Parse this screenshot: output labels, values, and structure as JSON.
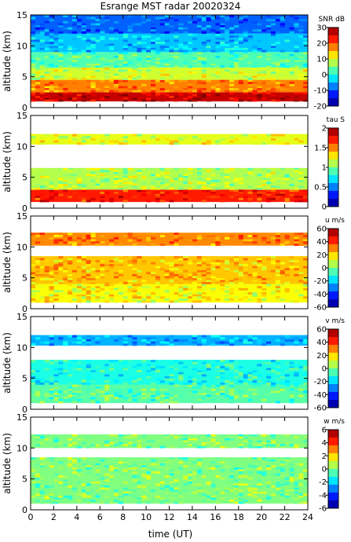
{
  "chart_data": {
    "type": "heatmap",
    "title": "Esrange MST radar 20020324",
    "xlabel": "time (UT)",
    "xlim": [
      0,
      24
    ],
    "x_ticks": [
      "0",
      "2",
      "4",
      "6",
      "8",
      "10",
      "12",
      "14",
      "16",
      "18",
      "20",
      "22",
      "24"
    ],
    "panels": [
      {
        "ylabel": "altitude (km)",
        "ylim": [
          0,
          15
        ],
        "y_ticks": [
          "0",
          "5",
          "10",
          "15"
        ],
        "colorbar_label": "SNR dB",
        "clim": [
          -20,
          30
        ],
        "colorbar_ticks": [
          "30",
          "20",
          "10",
          "0",
          "-10",
          "-20"
        ],
        "layers": [
          {
            "alt_min": 1,
            "alt_max": 2.5,
            "level": 0.93
          },
          {
            "alt_min": 2.5,
            "alt_max": 4.5,
            "level": 0.75
          },
          {
            "alt_min": 4.5,
            "alt_max": 6.5,
            "level": 0.58
          },
          {
            "alt_min": 6.5,
            "alt_max": 9,
            "level": 0.45
          },
          {
            "alt_min": 9,
            "alt_max": 12,
            "level": 0.32
          },
          {
            "alt_min": 12,
            "alt_max": 15,
            "level": 0.22
          }
        ]
      },
      {
        "ylabel": "altitude (km)",
        "ylim": [
          0,
          15
        ],
        "y_ticks": [
          "0",
          "5",
          "10",
          "15"
        ],
        "colorbar_label": "tau S",
        "clim": [
          0,
          2
        ],
        "colorbar_ticks": [
          "2",
          "1.5",
          "1",
          "0.5",
          "0"
        ],
        "layers": [
          {
            "alt_min": 1,
            "alt_max": 3,
            "level": 0.85
          },
          {
            "alt_min": 3,
            "alt_max": 6.5,
            "level": 0.55
          },
          {
            "alt_min": 10.3,
            "alt_max": 12,
            "level": 0.6
          }
        ]
      },
      {
        "ylabel": "altitude (km)",
        "ylim": [
          0,
          15
        ],
        "y_ticks": [
          "0",
          "5",
          "10",
          "15"
        ],
        "colorbar_label": "u m/s",
        "clim": [
          -60,
          60
        ],
        "colorbar_ticks": [
          "60",
          "40",
          "20",
          "0",
          "-20",
          "-40",
          "-60"
        ],
        "layers": [
          {
            "alt_min": 1,
            "alt_max": 4,
            "level": 0.62
          },
          {
            "alt_min": 4,
            "alt_max": 8.5,
            "level": 0.68
          },
          {
            "alt_min": 10.2,
            "alt_max": 12.3,
            "level": 0.74
          }
        ]
      },
      {
        "ylabel": "altitude (km)",
        "ylim": [
          0,
          15
        ],
        "y_ticks": [
          "0",
          "5",
          "10",
          "15"
        ],
        "colorbar_label": "v m/s",
        "clim": [
          -60,
          60
        ],
        "colorbar_ticks": [
          "60",
          "40",
          "20",
          "0",
          "-20",
          "-40",
          "-60"
        ],
        "layers": [
          {
            "alt_min": 1,
            "alt_max": 4,
            "level": 0.46
          },
          {
            "alt_min": 4,
            "alt_max": 8,
            "level": 0.4
          },
          {
            "alt_min": 10.3,
            "alt_max": 12,
            "level": 0.3
          }
        ]
      },
      {
        "ylabel": "altitude (km)",
        "ylim": [
          0,
          15
        ],
        "y_ticks": [
          "0",
          "5",
          "10",
          "15"
        ],
        "colorbar_label": "w m/s",
        "clim": [
          -6,
          6
        ],
        "colorbar_ticks": [
          "6",
          "4",
          "2",
          "0",
          "-2",
          "-4",
          "-6"
        ],
        "layers": [
          {
            "alt_min": 1,
            "alt_max": 8.5,
            "level": 0.5
          },
          {
            "alt_min": 10,
            "alt_max": 12.2,
            "level": 0.5
          }
        ]
      }
    ]
  }
}
